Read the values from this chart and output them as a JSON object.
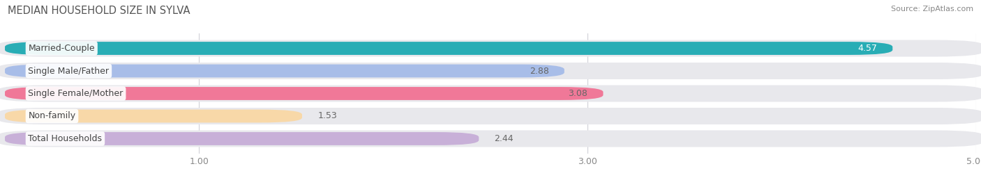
{
  "title": "MEDIAN HOUSEHOLD SIZE IN SYLVA",
  "source": "Source: ZipAtlas.com",
  "categories": [
    "Married-Couple",
    "Single Male/Father",
    "Single Female/Mother",
    "Non-family",
    "Total Households"
  ],
  "values": [
    4.57,
    2.88,
    3.08,
    1.53,
    2.44
  ],
  "bar_colors": [
    "#29adb5",
    "#a8bde8",
    "#f07898",
    "#f8d8a8",
    "#c8b0d8"
  ],
  "value_colors": [
    "#ffffff",
    "#666666",
    "#666666",
    "#666666",
    "#666666"
  ],
  "xlim_max": 5.0,
  "xlim_start": 0,
  "xticks": [
    1.0,
    3.0,
    5.0
  ],
  "xticklabels": [
    "1.00",
    "3.00",
    "5.00"
  ],
  "title_fontsize": 10.5,
  "label_fontsize": 9,
  "value_fontsize": 9,
  "source_fontsize": 8,
  "bar_height": 0.58,
  "row_bg_color": "#e8e8ec",
  "label_bg_color": "#ffffff",
  "background_color": "#ffffff",
  "grid_color": "#d0d0d8"
}
